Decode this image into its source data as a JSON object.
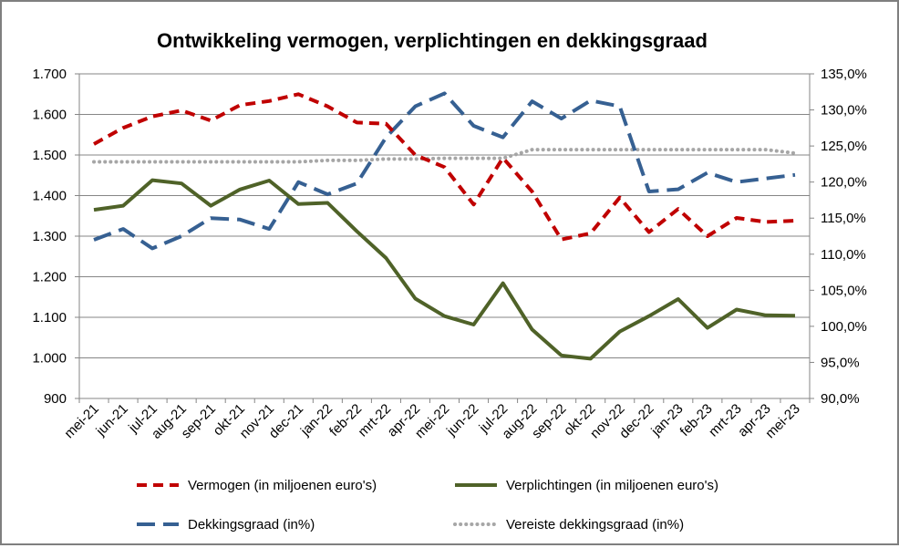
{
  "chart_data": {
    "type": "line",
    "title": "Ontwikkeling vermogen, verplichtingen en dekkingsgraad",
    "categories": [
      "mei-21",
      "jun-21",
      "jul-21",
      "aug-21",
      "sep-21",
      "okt-21",
      "nov-21",
      "dec-21",
      "jan-22",
      "feb-22",
      "mrt-22",
      "apr-22",
      "mei-22",
      "jun-22",
      "jul-22",
      "aug-22",
      "sep-22",
      "okt-22",
      "nov-22",
      "dec-22",
      "jan-23",
      "feb-23",
      "mrt-23",
      "apr-23",
      "mei-23"
    ],
    "y_left": {
      "min": 900,
      "max": 1700,
      "step": 100,
      "tick_labels": [
        "900",
        "1.000",
        "1.100",
        "1.200",
        "1.300",
        "1.400",
        "1.500",
        "1.600",
        "1.700"
      ]
    },
    "y_right": {
      "min": 90,
      "max": 135,
      "step": 5,
      "tick_labels": [
        "90,0%",
        "95,0%",
        "100,0%",
        "105,0%",
        "110,0%",
        "115,0%",
        "120,0%",
        "125,0%",
        "130,0%",
        "135,0%"
      ]
    },
    "grid": "horizontal",
    "legend_position": "bottom",
    "series": [
      {
        "name": "Vermogen (in miljoenen euro's)",
        "axis": "left",
        "color": "#c00000",
        "dash": "dash",
        "width": 4,
        "values": [
          1527,
          1567,
          1595,
          1610,
          1585,
          1623,
          1633,
          1650,
          1620,
          1580,
          1577,
          1500,
          1470,
          1378,
          1493,
          1410,
          1292,
          1307,
          1395,
          1310,
          1367,
          1300,
          1345,
          1335,
          1338
        ]
      },
      {
        "name": "Verplichtingen (in miljoenen euro's)",
        "axis": "left",
        "color": "#4f6228",
        "dash": "solid",
        "width": 4,
        "values": [
          1365,
          1375,
          1438,
          1430,
          1375,
          1415,
          1437,
          1379,
          1382,
          1312,
          1246,
          1146,
          1103,
          1082,
          1184,
          1070,
          1006,
          998,
          1065,
          1103,
          1145,
          1074,
          1119,
          1105,
          1104
        ]
      },
      {
        "name": "Dekkingsgraad (in%)",
        "axis": "right",
        "color": "#366092",
        "dash": "longdash",
        "width": 4,
        "values": [
          112.0,
          113.5,
          110.8,
          112.5,
          115.0,
          114.8,
          113.5,
          120.0,
          118.3,
          119.8,
          126.2,
          130.5,
          132.3,
          127.8,
          126.2,
          131.2,
          128.8,
          131.3,
          130.5,
          118.7,
          119.0,
          121.3,
          120.0,
          120.5,
          121.0
        ]
      },
      {
        "name": "Vereiste dekkingsgraad (in%)",
        "axis": "right",
        "color": "#a6a6a6",
        "dash": "dot",
        "width": 4,
        "values": [
          122.8,
          122.8,
          122.8,
          122.8,
          122.8,
          122.8,
          122.8,
          122.8,
          123.0,
          123.0,
          123.2,
          123.2,
          123.3,
          123.3,
          123.3,
          124.5,
          124.5,
          124.5,
          124.5,
          124.5,
          124.5,
          124.5,
          124.5,
          124.5,
          124.0
        ]
      }
    ]
  }
}
